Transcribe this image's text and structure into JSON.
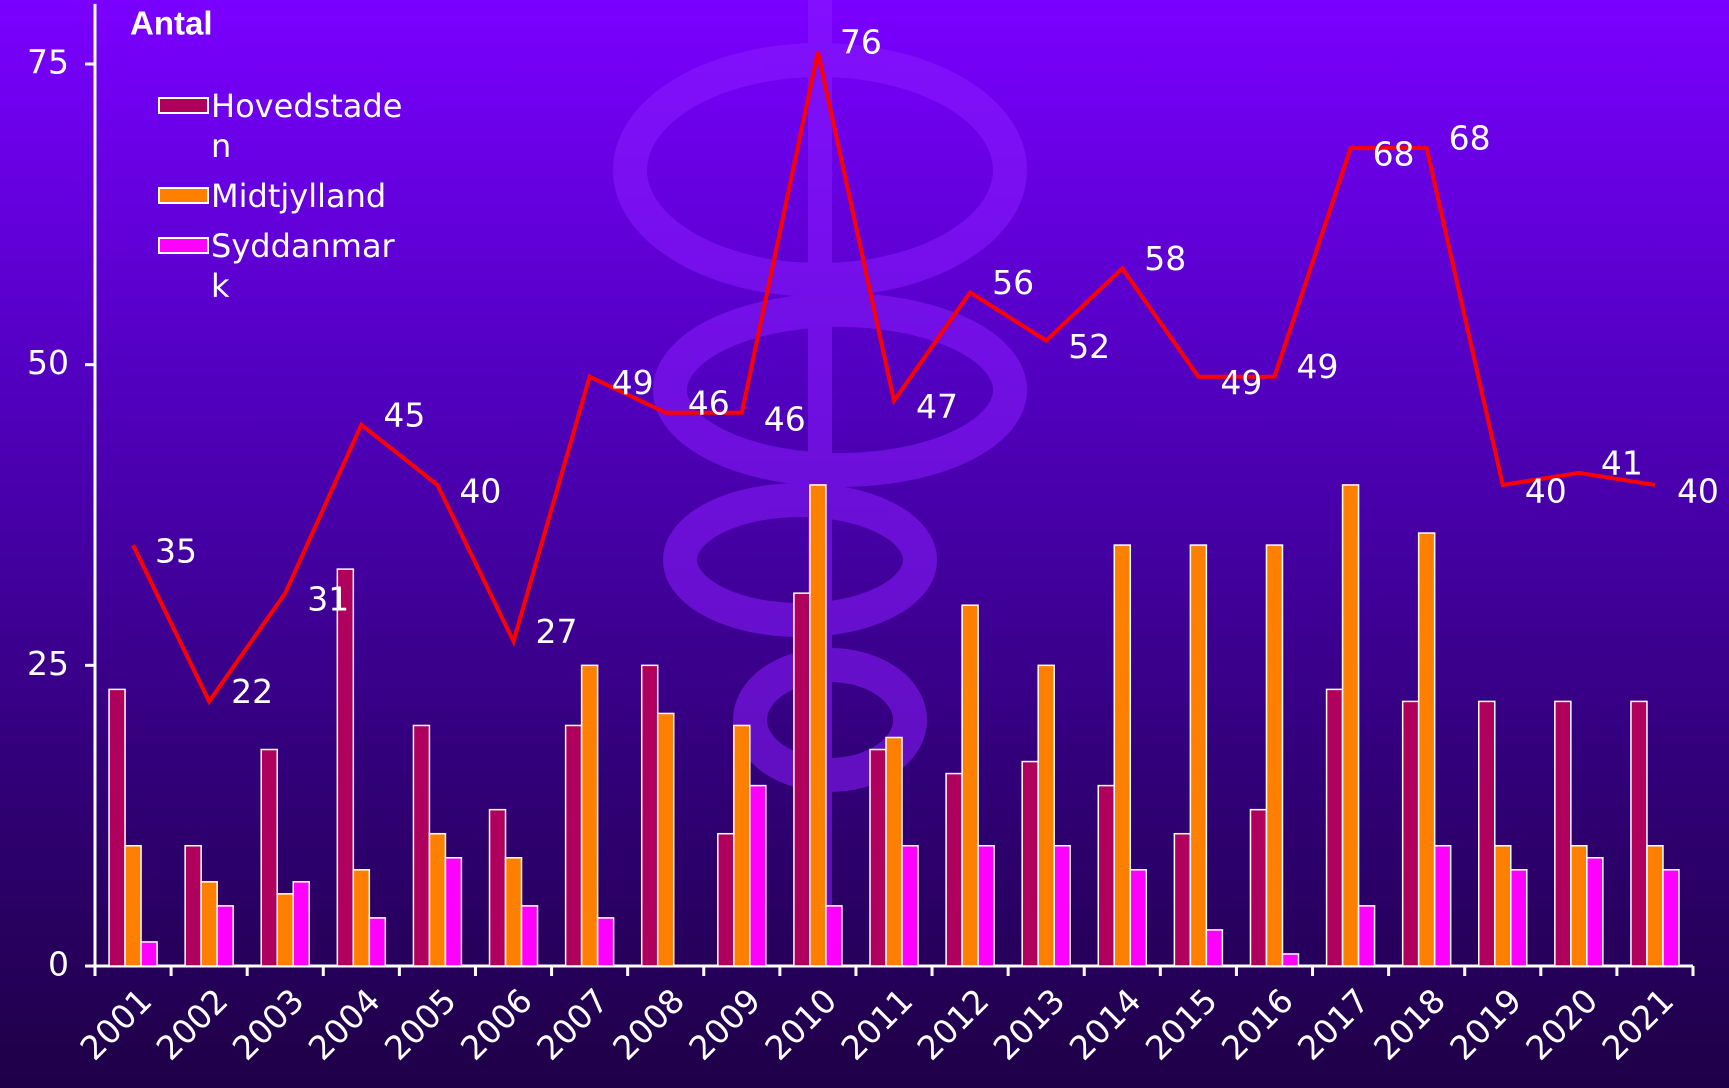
{
  "chart_data": {
    "type": "bar",
    "y_label": "Antal",
    "categories": [
      "2001",
      "2002",
      "2003",
      "2004",
      "2005",
      "2006",
      "2007",
      "2008",
      "2009",
      "2010",
      "2011",
      "2012",
      "2013",
      "2014",
      "2015",
      "2016",
      "2017",
      "2018",
      "2019",
      "2020",
      "2021"
    ],
    "series": [
      {
        "name": "Hovedstaden",
        "color": "#b0005e",
        "values": [
          23,
          10,
          18,
          33,
          20,
          13,
          20,
          25,
          11,
          31,
          18,
          16,
          17,
          15,
          11,
          13,
          23,
          22,
          22,
          22,
          22
        ]
      },
      {
        "name": "Midtjylland",
        "color": "#ff8000",
        "values": [
          10,
          7,
          6,
          8,
          11,
          9,
          25,
          21,
          20,
          40,
          19,
          30,
          25,
          35,
          35,
          35,
          40,
          36,
          10,
          10,
          10
        ]
      },
      {
        "name": "Syddanmark",
        "color": "#ff00ff",
        "values": [
          2,
          5,
          7,
          4,
          9,
          5,
          4,
          0,
          15,
          5,
          10,
          10,
          10,
          8,
          3,
          1,
          5,
          10,
          8,
          9,
          8
        ]
      }
    ],
    "line": {
      "type": "line",
      "color": "#ff0000",
      "values": [
        35,
        22,
        31,
        45,
        40,
        27,
        49,
        46,
        46,
        76,
        47,
        56,
        52,
        58,
        49,
        49,
        68,
        68,
        40,
        41,
        40
      ]
    },
    "ylim": [
      0,
      80
    ],
    "yticks": [
      0,
      25,
      50,
      75
    ]
  }
}
